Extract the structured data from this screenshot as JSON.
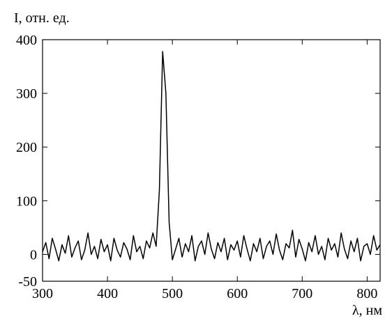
{
  "chart_data": {
    "type": "line",
    "ylabel": "I, отн. ед.",
    "xlabel": "λ, нм",
    "xlim": [
      300,
      820
    ],
    "ylim": [
      -50,
      400
    ],
    "xticks": [
      300,
      400,
      500,
      600,
      700,
      800
    ],
    "yticks": [
      -50,
      0,
      100,
      200,
      300,
      400
    ],
    "color": "#000000",
    "x": [
      300,
      305,
      310,
      315,
      320,
      325,
      330,
      335,
      340,
      345,
      350,
      355,
      360,
      365,
      370,
      375,
      380,
      385,
      390,
      395,
      400,
      405,
      410,
      415,
      420,
      425,
      430,
      435,
      440,
      445,
      450,
      455,
      460,
      465,
      470,
      475,
      480,
      485,
      490,
      495,
      500,
      505,
      510,
      515,
      520,
      525,
      530,
      535,
      540,
      545,
      550,
      555,
      560,
      565,
      570,
      575,
      580,
      585,
      590,
      595,
      600,
      605,
      610,
      615,
      620,
      625,
      630,
      635,
      640,
      645,
      650,
      655,
      660,
      665,
      670,
      675,
      680,
      685,
      690,
      695,
      700,
      705,
      710,
      715,
      720,
      725,
      730,
      735,
      740,
      745,
      750,
      755,
      760,
      765,
      770,
      775,
      780,
      785,
      790,
      795,
      800,
      805,
      810,
      815,
      820
    ],
    "values": [
      5,
      22,
      -8,
      30,
      10,
      -12,
      18,
      2,
      35,
      -5,
      12,
      25,
      -10,
      8,
      40,
      0,
      15,
      -8,
      28,
      5,
      18,
      -12,
      30,
      8,
      -5,
      22,
      10,
      -10,
      35,
      5,
      15,
      -8,
      25,
      12,
      40,
      15,
      120,
      378,
      300,
      60,
      -10,
      10,
      30,
      -5,
      20,
      5,
      35,
      -12,
      15,
      25,
      0,
      40,
      10,
      -8,
      22,
      5,
      30,
      -10,
      18,
      8,
      25,
      -5,
      35,
      10,
      -12,
      20,
      5,
      30,
      -8,
      15,
      25,
      0,
      38,
      8,
      -10,
      20,
      12,
      45,
      -5,
      28,
      10,
      -12,
      22,
      5,
      35,
      0,
      15,
      -10,
      30,
      8,
      20,
      -5,
      40,
      10,
      -8,
      25,
      5,
      30,
      -12,
      15,
      20,
      0,
      35,
      8,
      18
    ]
  }
}
